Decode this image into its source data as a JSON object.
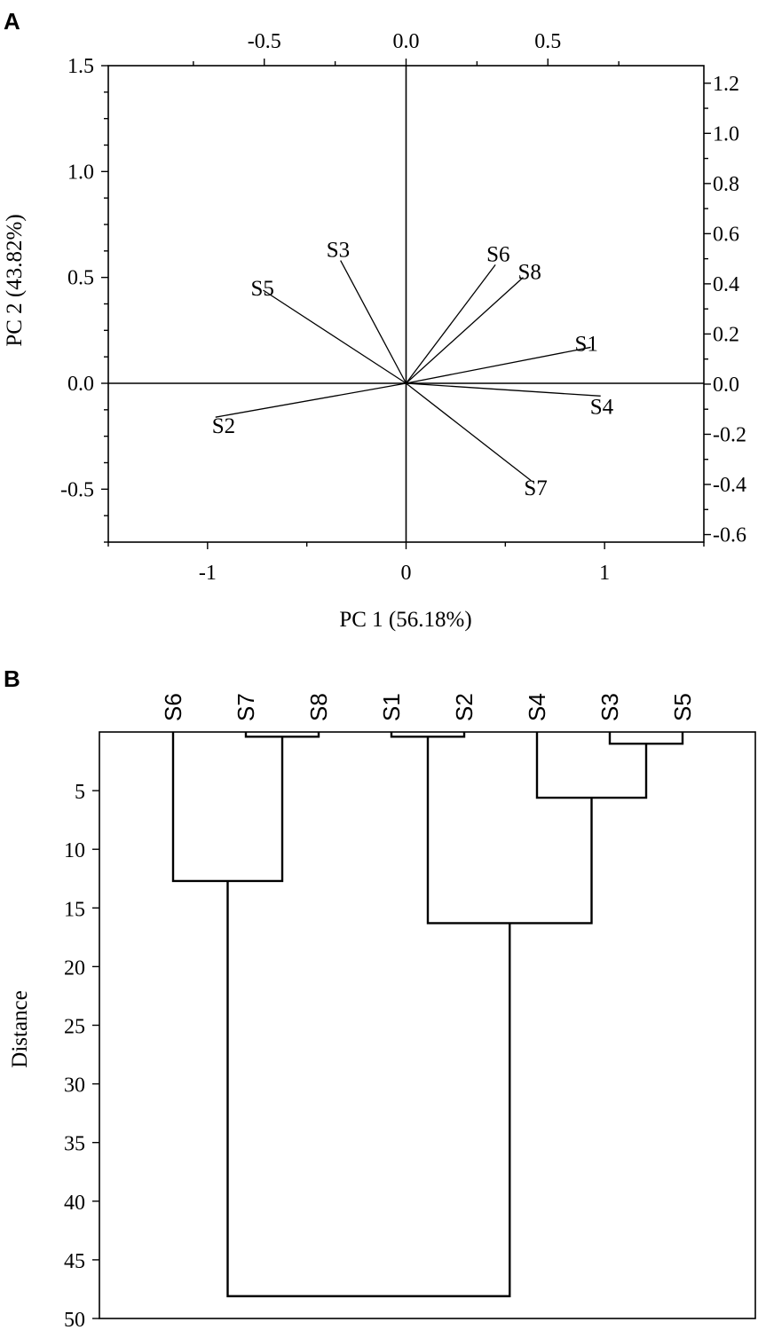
{
  "panels": {
    "a": "A",
    "b": "B"
  },
  "chart_data": [
    {
      "type": "scatter",
      "subtype": "biplot-vectors",
      "xlabel": "PC 1 (56.18%)",
      "ylabel": "PC 2 (43.82%)",
      "xlim": [
        -1.5,
        1.5
      ],
      "ylim": [
        -0.75,
        1.5
      ],
      "x_ticks": [
        "-1",
        "0",
        "1"
      ],
      "x_tick_values": [
        -1,
        0,
        1
      ],
      "y_ticks": [
        "-0.5",
        "0.0",
        "0.5",
        "1.0",
        "1.5"
      ],
      "y_tick_values": [
        -0.5,
        0,
        0.5,
        1.0,
        1.5
      ],
      "top_axis": {
        "lim": [
          -1.05,
          1.05
        ],
        "ticks": [
          "-0.5",
          "0.0",
          "0.5"
        ],
        "tick_values": [
          -0.5,
          0,
          0.5
        ]
      },
      "right_axis": {
        "lim": [
          -0.63,
          1.27
        ],
        "ticks": [
          "1.2",
          "1.0",
          "0.8",
          "0.6",
          "0.4",
          "0.2",
          "0.0",
          "-0.2",
          "-0.4",
          "-0.6"
        ],
        "tick_values": [
          1.2,
          1.0,
          0.8,
          0.6,
          0.4,
          0.2,
          0.0,
          -0.2,
          -0.4,
          -0.6
        ]
      },
      "series": [
        {
          "name": "S1",
          "x": 0.93,
          "y": 0.17
        },
        {
          "name": "S2",
          "x": -0.96,
          "y": -0.16
        },
        {
          "name": "S3",
          "x": -0.33,
          "y": 0.58
        },
        {
          "name": "S4",
          "x": 0.98,
          "y": -0.06
        },
        {
          "name": "S5",
          "x": -0.72,
          "y": 0.44
        },
        {
          "name": "S6",
          "x": 0.45,
          "y": 0.56
        },
        {
          "name": "S7",
          "x": 0.63,
          "y": -0.46
        },
        {
          "name": "S8",
          "x": 0.59,
          "y": 0.5
        }
      ],
      "grid": false
    },
    {
      "type": "dendrogram",
      "ylabel": "Distance",
      "ylim": [
        0,
        50
      ],
      "y_ticks": [
        "5",
        "10",
        "15",
        "20",
        "25",
        "30",
        "35",
        "40",
        "45",
        "50"
      ],
      "y_tick_values": [
        5,
        10,
        15,
        20,
        25,
        30,
        35,
        40,
        45,
        50
      ],
      "leaves": [
        "S6",
        "S7",
        "S8",
        "S1",
        "S2",
        "S4",
        "S3",
        "S5"
      ],
      "merges": [
        {
          "a": "S7",
          "b": "S8",
          "height": 0.4
        },
        {
          "a": "S1",
          "b": "S2",
          "height": 0.4
        },
        {
          "a": "S3",
          "b": "S5",
          "height": 1.0
        },
        {
          "a": "S4",
          "b": "S3+S5",
          "height": 5.6
        },
        {
          "a": "S6",
          "b": "S7+S8",
          "height": 12.7
        },
        {
          "a": "S1+S2",
          "b": "S4+S3+S5",
          "height": 16.3
        },
        {
          "a": "S6+S7+S8",
          "b": "S1+S2+S4+S3+S5",
          "height": 48.1
        }
      ]
    }
  ]
}
